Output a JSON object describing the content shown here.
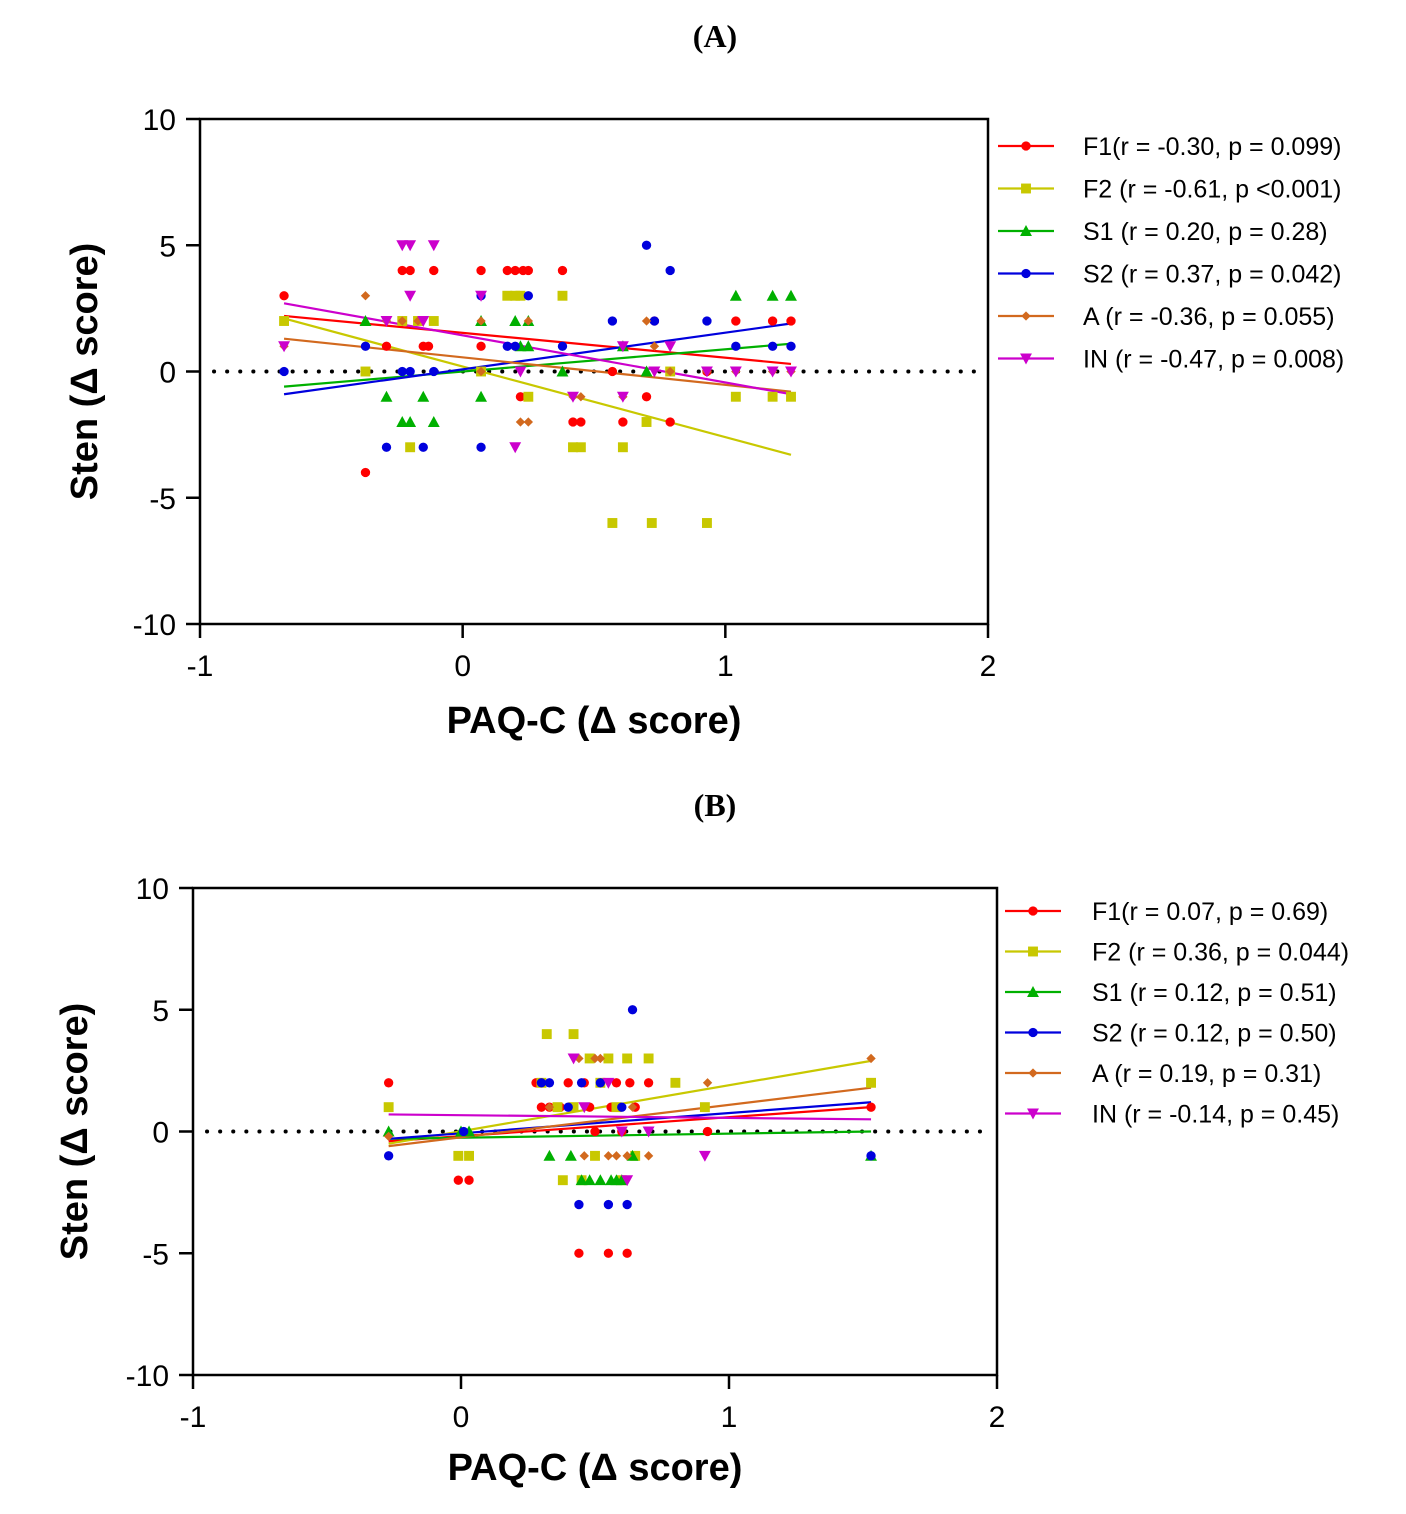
{
  "chart_data": [
    {
      "type": "scatter",
      "panel": "(A)",
      "xlabel": "PAQ-C (Δ score)",
      "ylabel": "Sten (Δ score)",
      "xlim": [
        -1,
        2
      ],
      "ylim": [
        -10,
        10
      ],
      "xticks": [
        "-1",
        "0",
        "1",
        "2"
      ],
      "yticks": [
        "10",
        "5",
        "0",
        "-5",
        "-10"
      ],
      "reference_line": {
        "y": 0,
        "style": "dotted"
      },
      "legend_position": "right",
      "series": [
        {
          "name": "F1(r = -0.30, p = 0.099)",
          "color": "#ff0000",
          "marker": "circle",
          "points": [
            [
              -0.68,
              3
            ],
            [
              -0.37,
              -4
            ],
            [
              -0.29,
              1
            ],
            [
              -0.23,
              4
            ],
            [
              -0.2,
              4
            ],
            [
              -0.15,
              1
            ],
            [
              -0.13,
              1
            ],
            [
              -0.11,
              4
            ],
            [
              0.07,
              4
            ],
            [
              0.07,
              1
            ],
            [
              0.17,
              4
            ],
            [
              0.2,
              4
            ],
            [
              0.22,
              -1
            ],
            [
              0.23,
              4
            ],
            [
              0.25,
              4
            ],
            [
              0.38,
              4
            ],
            [
              0.42,
              -2
            ],
            [
              0.45,
              -2
            ],
            [
              0.57,
              0
            ],
            [
              0.61,
              -2
            ],
            [
              0.7,
              -1
            ],
            [
              0.73,
              2
            ],
            [
              0.79,
              -2
            ],
            [
              0.93,
              0
            ],
            [
              1.04,
              2
            ],
            [
              1.18,
              2
            ],
            [
              1.25,
              2
            ]
          ],
          "trend": [
            [
              -0.68,
              2.2
            ],
            [
              1.25,
              0.3
            ]
          ]
        },
        {
          "name": "F2 (r = -0.61, p <0.001)",
          "color": "#c8c800",
          "marker": "square",
          "points": [
            [
              -0.68,
              2
            ],
            [
              -0.37,
              0
            ],
            [
              -0.23,
              2
            ],
            [
              -0.2,
              -3
            ],
            [
              -0.17,
              2
            ],
            [
              -0.11,
              2
            ],
            [
              0.07,
              0
            ],
            [
              0.17,
              3
            ],
            [
              0.2,
              3
            ],
            [
              0.22,
              3
            ],
            [
              0.25,
              -1
            ],
            [
              0.38,
              3
            ],
            [
              0.42,
              -3
            ],
            [
              0.45,
              -3
            ],
            [
              0.57,
              -6
            ],
            [
              0.61,
              -3
            ],
            [
              0.7,
              -2
            ],
            [
              0.72,
              -6
            ],
            [
              0.79,
              0
            ],
            [
              0.93,
              -6
            ],
            [
              1.04,
              -1
            ],
            [
              1.18,
              -1
            ],
            [
              1.25,
              -1
            ]
          ],
          "trend": [
            [
              -0.68,
              2.1
            ],
            [
              1.25,
              -3.3
            ]
          ]
        },
        {
          "name": "S1 (r = 0.20, p = 0.28)",
          "color": "#00b000",
          "marker": "triangle-up",
          "points": [
            [
              -0.37,
              2
            ],
            [
              -0.29,
              -1
            ],
            [
              -0.23,
              -2
            ],
            [
              -0.2,
              -2
            ],
            [
              -0.15,
              -1
            ],
            [
              -0.11,
              -2
            ],
            [
              0.07,
              -1
            ],
            [
              0.07,
              2
            ],
            [
              0.2,
              2
            ],
            [
              0.22,
              1
            ],
            [
              0.25,
              2
            ],
            [
              0.25,
              1
            ],
            [
              0.38,
              0
            ],
            [
              0.61,
              1
            ],
            [
              0.7,
              0
            ],
            [
              1.04,
              3
            ],
            [
              1.18,
              3
            ],
            [
              1.25,
              3
            ]
          ],
          "trend": [
            [
              -0.68,
              -0.6
            ],
            [
              1.25,
              1.1
            ]
          ]
        },
        {
          "name": "S2 (r = 0.37, p = 0.042)",
          "color": "#0000dd",
          "marker": "circle",
          "points": [
            [
              -0.68,
              0
            ],
            [
              -0.37,
              1
            ],
            [
              -0.29,
              -3
            ],
            [
              -0.23,
              0
            ],
            [
              -0.2,
              0
            ],
            [
              -0.15,
              -3
            ],
            [
              -0.11,
              0
            ],
            [
              0.07,
              3
            ],
            [
              0.07,
              -3
            ],
            [
              0.17,
              1
            ],
            [
              0.2,
              1
            ],
            [
              0.25,
              3
            ],
            [
              0.38,
              1
            ],
            [
              0.57,
              2
            ],
            [
              0.7,
              5
            ],
            [
              0.73,
              2
            ],
            [
              0.79,
              4
            ],
            [
              0.93,
              2
            ],
            [
              1.04,
              1
            ],
            [
              1.18,
              1
            ],
            [
              1.25,
              1
            ]
          ],
          "trend": [
            [
              -0.68,
              -0.9
            ],
            [
              1.25,
              1.9
            ]
          ]
        },
        {
          "name": "A (r = -0.36, p = 0.055)",
          "color": "#d2691e",
          "marker": "diamond",
          "points": [
            [
              -0.68,
              1
            ],
            [
              -0.37,
              3
            ],
            [
              -0.29,
              2
            ],
            [
              -0.23,
              2
            ],
            [
              -0.17,
              2
            ],
            [
              0.07,
              2
            ],
            [
              0.07,
              0
            ],
            [
              0.22,
              -2
            ],
            [
              0.25,
              -2
            ],
            [
              0.25,
              2
            ],
            [
              0.42,
              -1
            ],
            [
              0.45,
              -1
            ],
            [
              0.61,
              -1
            ],
            [
              0.7,
              2
            ],
            [
              0.73,
              1
            ],
            [
              0.79,
              0
            ],
            [
              0.93,
              0
            ],
            [
              1.04,
              0
            ],
            [
              1.18,
              0
            ],
            [
              1.25,
              0
            ]
          ],
          "trend": [
            [
              -0.68,
              1.3
            ],
            [
              1.25,
              -0.8
            ]
          ]
        },
        {
          "name": "IN (r = -0.47, p = 0.008)",
          "color": "#cc00cc",
          "marker": "triangle-down",
          "points": [
            [
              -0.68,
              1
            ],
            [
              -0.29,
              2
            ],
            [
              -0.23,
              5
            ],
            [
              -0.2,
              5
            ],
            [
              -0.2,
              3
            ],
            [
              -0.15,
              2
            ],
            [
              -0.11,
              5
            ],
            [
              0.07,
              3
            ],
            [
              0.2,
              -3
            ],
            [
              0.22,
              0
            ],
            [
              0.42,
              -1
            ],
            [
              0.61,
              -1
            ],
            [
              0.61,
              1
            ],
            [
              0.73,
              0
            ],
            [
              0.79,
              1
            ],
            [
              0.93,
              0
            ],
            [
              1.04,
              0
            ],
            [
              1.18,
              0
            ],
            [
              1.25,
              0
            ]
          ],
          "trend": [
            [
              -0.68,
              2.7
            ],
            [
              1.25,
              -0.9
            ]
          ]
        }
      ]
    },
    {
      "type": "scatter",
      "panel": "(B)",
      "xlabel": "PAQ-C (Δ score)",
      "ylabel": "Sten (Δ score)",
      "xlim": [
        -1,
        2
      ],
      "ylim": [
        -10,
        10
      ],
      "xticks": [
        "-1",
        "0",
        "1",
        "2"
      ],
      "yticks": [
        "10",
        "5",
        "0",
        "-5",
        "-10"
      ],
      "reference_line": {
        "y": 0,
        "style": "dotted"
      },
      "legend_position": "right",
      "series": [
        {
          "name": "F1(r = 0.07, p = 0.69)",
          "color": "#ff0000",
          "marker": "circle",
          "points": [
            [
              -0.27,
              2
            ],
            [
              -0.01,
              -2
            ],
            [
              0.03,
              -2
            ],
            [
              0.28,
              2
            ],
            [
              0.3,
              1
            ],
            [
              0.33,
              1
            ],
            [
              0.37,
              1
            ],
            [
              0.4,
              2
            ],
            [
              0.42,
              1
            ],
            [
              0.44,
              -5
            ],
            [
              0.46,
              2
            ],
            [
              0.48,
              1
            ],
            [
              0.5,
              0
            ],
            [
              0.52,
              2
            ],
            [
              0.55,
              -5
            ],
            [
              0.56,
              1
            ],
            [
              0.58,
              2
            ],
            [
              0.6,
              0
            ],
            [
              0.62,
              -5
            ],
            [
              0.63,
              2
            ],
            [
              0.65,
              1
            ],
            [
              0.7,
              2
            ],
            [
              0.92,
              0
            ],
            [
              1.53,
              1
            ]
          ],
          "trend": [
            [
              -0.27,
              -0.4
            ],
            [
              1.53,
              1.0
            ]
          ]
        },
        {
          "name": "F2 (r = 0.36, p = 0.044)",
          "color": "#c8c800",
          "marker": "square",
          "points": [
            [
              -0.27,
              1
            ],
            [
              -0.01,
              -1
            ],
            [
              0.03,
              -1
            ],
            [
              0.3,
              2
            ],
            [
              0.32,
              4
            ],
            [
              0.36,
              1
            ],
            [
              0.38,
              -2
            ],
            [
              0.42,
              1
            ],
            [
              0.42,
              4
            ],
            [
              0.45,
              -2
            ],
            [
              0.48,
              3
            ],
            [
              0.5,
              -1
            ],
            [
              0.52,
              2
            ],
            [
              0.55,
              3
            ],
            [
              0.58,
              1
            ],
            [
              0.6,
              -2
            ],
            [
              0.62,
              3
            ],
            [
              0.65,
              -1
            ],
            [
              0.7,
              3
            ],
            [
              0.8,
              2
            ],
            [
              0.91,
              1
            ],
            [
              1.53,
              2
            ]
          ],
          "trend": [
            [
              -0.27,
              -0.5
            ],
            [
              1.53,
              2.9
            ]
          ]
        },
        {
          "name": "S1 (r = 0.12, p = 0.51)",
          "color": "#00b000",
          "marker": "triangle-up",
          "points": [
            [
              -0.27,
              0
            ],
            [
              0.0,
              0
            ],
            [
              0.03,
              0
            ],
            [
              0.33,
              -1
            ],
            [
              0.41,
              -1
            ],
            [
              0.45,
              -2
            ],
            [
              0.48,
              -2
            ],
            [
              0.52,
              -2
            ],
            [
              0.56,
              -2
            ],
            [
              0.58,
              -2
            ],
            [
              0.6,
              -2
            ],
            [
              0.64,
              -1
            ],
            [
              1.53,
              -1
            ]
          ],
          "trend": [
            [
              -0.27,
              -0.3
            ],
            [
              1.53,
              0.0
            ]
          ]
        },
        {
          "name": "S2 (r = 0.12, p = 0.50)",
          "color": "#0000dd",
          "marker": "circle",
          "points": [
            [
              -0.27,
              -1
            ],
            [
              0.01,
              0
            ],
            [
              0.3,
              2
            ],
            [
              0.33,
              2
            ],
            [
              0.4,
              1
            ],
            [
              0.44,
              -3
            ],
            [
              0.45,
              2
            ],
            [
              0.52,
              2
            ],
            [
              0.55,
              -3
            ],
            [
              0.6,
              1
            ],
            [
              0.62,
              -3
            ],
            [
              0.64,
              5
            ],
            [
              1.53,
              -1
            ]
          ],
          "trend": [
            [
              -0.27,
              -0.3
            ],
            [
              1.53,
              1.2
            ]
          ]
        },
        {
          "name": "A (r = 0.19, p = 0.31)",
          "color": "#d2691e",
          "marker": "diamond",
          "points": [
            [
              -0.27,
              -0.2
            ],
            [
              0.33,
              1
            ],
            [
              0.44,
              3
            ],
            [
              0.46,
              -1
            ],
            [
              0.5,
              3
            ],
            [
              0.52,
              3
            ],
            [
              0.55,
              -1
            ],
            [
              0.58,
              -1
            ],
            [
              0.62,
              -1
            ],
            [
              0.64,
              1
            ],
            [
              0.7,
              -1
            ],
            [
              0.92,
              2
            ],
            [
              1.53,
              3
            ]
          ],
          "trend": [
            [
              -0.27,
              -0.6
            ],
            [
              1.53,
              1.8
            ]
          ]
        },
        {
          "name": "IN (r = -0.14, p = 0.45)",
          "color": "#cc00cc",
          "marker": "triangle-down",
          "points": [
            [
              0.42,
              3
            ],
            [
              0.46,
              1
            ],
            [
              0.55,
              2
            ],
            [
              0.6,
              0
            ],
            [
              0.62,
              -2
            ],
            [
              0.7,
              0
            ],
            [
              0.91,
              -1
            ]
          ],
          "trend": [
            [
              -0.27,
              0.7
            ],
            [
              1.53,
              0.5
            ]
          ]
        }
      ]
    }
  ]
}
